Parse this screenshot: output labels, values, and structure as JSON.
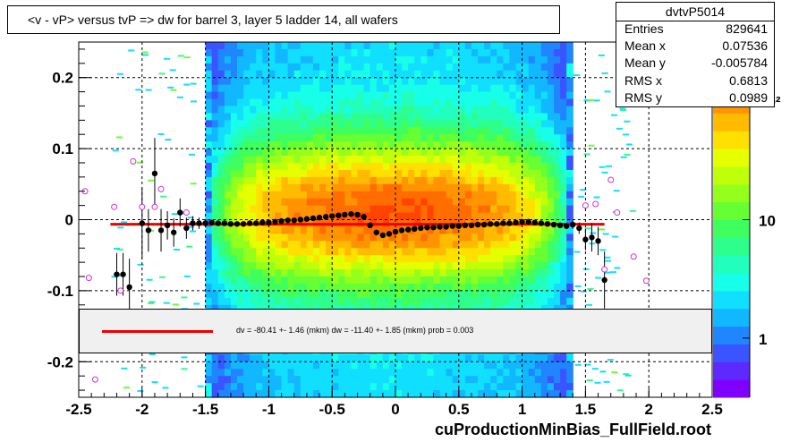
{
  "title": "<v - vP>       versus  tvP =>  dw for barrel 3, layer 5 ladder 14, all wafers",
  "footer": "cuProductionMinBias_FullField.root",
  "stats": {
    "name": "dvtvP5014",
    "rows": [
      {
        "label": "Entries",
        "value": "829641"
      },
      {
        "label": "Mean x",
        "value": "0.07536"
      },
      {
        "label": "Mean y",
        "value": "-0.005784"
      },
      {
        "label": "RMS x",
        "value": "0.6813"
      },
      {
        "label": "RMS y",
        "value": "0.0989"
      }
    ]
  },
  "fit_text": "dv =  -80.41 +-  1.46 (mkm) dw =  -11.40 +-  1.85 (mkm) prob = 0.003",
  "palette": {
    "labels": [
      "1",
      "10",
      "10²"
    ],
    "colors": [
      "#7f00ff",
      "#5d29ff",
      "#3a55ff",
      "#1f86ff",
      "#12b8ff",
      "#11dfff",
      "#17ffe8",
      "#22ffbc",
      "#2eff8c",
      "#3fff5e",
      "#66ff33",
      "#94ff1c",
      "#c0ff0a",
      "#e6ff00",
      "#ffe000",
      "#ffbb00",
      "#ff9400",
      "#ff6c00",
      "#ff4300",
      "#ff1a00"
    ]
  },
  "chart_data": {
    "type": "scatter",
    "x_axis": {
      "range": [
        -2.5,
        2.5
      ],
      "ticks": [
        "-2.5",
        "-2",
        "-1.5",
        "-1",
        "-0.5",
        "0",
        "0.5",
        "1",
        "1.5",
        "2",
        "2.5"
      ]
    },
    "y_axis": {
      "range": [
        -0.25,
        0.25
      ],
      "ticks": [
        "-0.2",
        "-0.1",
        "0",
        "0.1",
        "0.2"
      ]
    },
    "z_axis": {
      "scale": "log",
      "ticks": [
        "1",
        "10",
        "10²"
      ]
    },
    "grid": true,
    "density_band": {
      "x_range": [
        -1.5,
        1.4
      ],
      "y_range": [
        -0.25,
        0.25
      ]
    },
    "fit_line": {
      "x": [
        -2.25,
        1.65
      ],
      "y": -0.0065
    },
    "profile_points": [
      {
        "x": -2.2,
        "y": -0.077,
        "err": 0.03
      },
      {
        "x": -2.15,
        "y": -0.077,
        "err": 0.03
      },
      {
        "x": -2.1,
        "y": -0.095,
        "err": 0.04
      },
      {
        "x": -2.0,
        "y": -0.005,
        "err": 0.05
      },
      {
        "x": -1.95,
        "y": -0.015,
        "err": 0.03
      },
      {
        "x": -1.9,
        "y": 0.065,
        "err": 0.05
      },
      {
        "x": -1.85,
        "y": -0.015,
        "err": 0.03
      },
      {
        "x": -1.8,
        "y": -0.008,
        "err": 0.02
      },
      {
        "x": -1.75,
        "y": -0.018,
        "err": 0.02
      },
      {
        "x": -1.7,
        "y": 0.01,
        "err": 0.02
      },
      {
        "x": -1.65,
        "y": -0.012,
        "err": 0.015
      },
      {
        "x": -1.6,
        "y": -0.005,
        "err": 0.01
      },
      {
        "x": -1.55,
        "y": -0.005,
        "err": 0.008
      },
      {
        "x": -1.5,
        "y": -0.005,
        "err": 0.006
      },
      {
        "x": -1.45,
        "y": -0.004,
        "err": 0.004
      },
      {
        "x": -1.4,
        "y": -0.005,
        "err": 0.003
      },
      {
        "x": -1.35,
        "y": -0.005,
        "err": 0.003
      },
      {
        "x": -1.3,
        "y": -0.006,
        "err": 0.002
      },
      {
        "x": -1.25,
        "y": -0.006,
        "err": 0.002
      },
      {
        "x": -1.2,
        "y": -0.006,
        "err": 0.002
      },
      {
        "x": -1.15,
        "y": -0.005,
        "err": 0.002
      },
      {
        "x": -1.1,
        "y": -0.005,
        "err": 0.002
      },
      {
        "x": -1.05,
        "y": -0.004,
        "err": 0.002
      },
      {
        "x": -1.0,
        "y": -0.004,
        "err": 0.002
      },
      {
        "x": -0.95,
        "y": -0.003,
        "err": 0.002
      },
      {
        "x": -0.9,
        "y": -0.002,
        "err": 0.002
      },
      {
        "x": -0.85,
        "y": -0.001,
        "err": 0.002
      },
      {
        "x": -0.8,
        "y": -0.001,
        "err": 0.002
      },
      {
        "x": -0.75,
        "y": 0.0,
        "err": 0.002
      },
      {
        "x": -0.7,
        "y": 0.001,
        "err": 0.002
      },
      {
        "x": -0.65,
        "y": 0.002,
        "err": 0.002
      },
      {
        "x": -0.6,
        "y": 0.003,
        "err": 0.002
      },
      {
        "x": -0.55,
        "y": 0.004,
        "err": 0.002
      },
      {
        "x": -0.5,
        "y": 0.005,
        "err": 0.002
      },
      {
        "x": -0.45,
        "y": 0.006,
        "err": 0.002
      },
      {
        "x": -0.4,
        "y": 0.007,
        "err": 0.002
      },
      {
        "x": -0.35,
        "y": 0.008,
        "err": 0.002
      },
      {
        "x": -0.3,
        "y": 0.007,
        "err": 0.002
      },
      {
        "x": -0.25,
        "y": 0.004,
        "err": 0.002
      },
      {
        "x": -0.2,
        "y": -0.008,
        "err": 0.002
      },
      {
        "x": -0.15,
        "y": -0.018,
        "err": 0.002
      },
      {
        "x": -0.1,
        "y": -0.022,
        "err": 0.002
      },
      {
        "x": -0.05,
        "y": -0.02,
        "err": 0.002
      },
      {
        "x": 0.0,
        "y": -0.017,
        "err": 0.002
      },
      {
        "x": 0.05,
        "y": -0.015,
        "err": 0.002
      },
      {
        "x": 0.1,
        "y": -0.014,
        "err": 0.002
      },
      {
        "x": 0.15,
        "y": -0.013,
        "err": 0.002
      },
      {
        "x": 0.2,
        "y": -0.012,
        "err": 0.002
      },
      {
        "x": 0.25,
        "y": -0.011,
        "err": 0.002
      },
      {
        "x": 0.3,
        "y": -0.011,
        "err": 0.002
      },
      {
        "x": 0.35,
        "y": -0.01,
        "err": 0.002
      },
      {
        "x": 0.4,
        "y": -0.01,
        "err": 0.002
      },
      {
        "x": 0.45,
        "y": -0.009,
        "err": 0.002
      },
      {
        "x": 0.5,
        "y": -0.009,
        "err": 0.002
      },
      {
        "x": 0.55,
        "y": -0.008,
        "err": 0.002
      },
      {
        "x": 0.6,
        "y": -0.008,
        "err": 0.002
      },
      {
        "x": 0.65,
        "y": -0.007,
        "err": 0.002
      },
      {
        "x": 0.7,
        "y": -0.007,
        "err": 0.002
      },
      {
        "x": 0.75,
        "y": -0.006,
        "err": 0.002
      },
      {
        "x": 0.8,
        "y": -0.006,
        "err": 0.002
      },
      {
        "x": 0.85,
        "y": -0.005,
        "err": 0.002
      },
      {
        "x": 0.9,
        "y": -0.005,
        "err": 0.002
      },
      {
        "x": 0.95,
        "y": -0.004,
        "err": 0.002
      },
      {
        "x": 1.0,
        "y": -0.003,
        "err": 0.002
      },
      {
        "x": 1.05,
        "y": -0.003,
        "err": 0.002
      },
      {
        "x": 1.1,
        "y": -0.004,
        "err": 0.002
      },
      {
        "x": 1.15,
        "y": -0.005,
        "err": 0.002
      },
      {
        "x": 1.2,
        "y": -0.006,
        "err": 0.003
      },
      {
        "x": 1.25,
        "y": -0.007,
        "err": 0.003
      },
      {
        "x": 1.3,
        "y": -0.008,
        "err": 0.003
      },
      {
        "x": 1.35,
        "y": -0.009,
        "err": 0.004
      },
      {
        "x": 1.4,
        "y": -0.007,
        "err": 0.006
      },
      {
        "x": 1.45,
        "y": -0.012,
        "err": 0.008
      },
      {
        "x": 1.5,
        "y": -0.028,
        "err": 0.015
      },
      {
        "x": 1.55,
        "y": -0.025,
        "err": 0.02
      },
      {
        "x": 1.6,
        "y": -0.03,
        "err": 0.02
      },
      {
        "x": 1.65,
        "y": -0.085,
        "err": 0.04
      }
    ],
    "open_points": [
      {
        "x": -2.45,
        "y": 0.04
      },
      {
        "x": -2.42,
        "y": -0.082
      },
      {
        "x": -2.37,
        "y": -0.225
      },
      {
        "x": -2.22,
        "y": 0.018
      },
      {
        "x": -2.17,
        "y": -0.1
      },
      {
        "x": -2.07,
        "y": 0.082
      },
      {
        "x": -2.0,
        "y": 0.018
      },
      {
        "x": -1.9,
        "y": 0.018
      },
      {
        "x": -1.85,
        "y": 0.043
      },
      {
        "x": -1.65,
        "y": 0.01
      },
      {
        "x": 1.5,
        "y": 0.02
      },
      {
        "x": 1.58,
        "y": 0.022
      },
      {
        "x": 1.65,
        "y": -0.07
      },
      {
        "x": 1.7,
        "y": 0.056
      },
      {
        "x": 1.75,
        "y": 0.01
      },
      {
        "x": 1.88,
        "y": -0.052
      },
      {
        "x": 1.98,
        "y": -0.086
      }
    ]
  }
}
